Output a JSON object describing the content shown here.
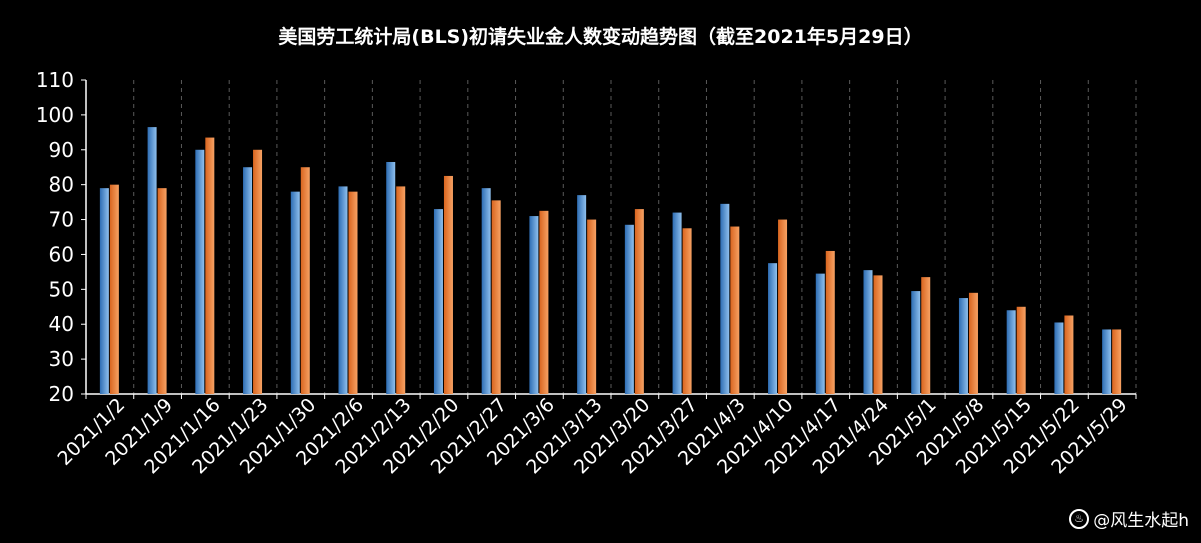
{
  "colors": {
    "background": "#000000",
    "series_blue": "#5b9bd5",
    "series_orange": "#ed7d31",
    "grid": "#5a5a5a"
  },
  "watermark": {
    "icon": "weibo-icon",
    "text": "@风生水起h"
  },
  "chart_data": {
    "type": "bar",
    "title": "美国劳工统计局(BLS)初请失业金人数变动趋势图（截至2021年5月29日）",
    "xlabel": "",
    "ylabel": "",
    "ylim": [
      20,
      110
    ],
    "yticks": [
      20,
      30,
      40,
      50,
      60,
      70,
      80,
      90,
      100,
      110
    ],
    "grid": "vertical dashed",
    "legend": "none",
    "categories": [
      "2021/1/2",
      "2021/1/9",
      "2021/1/16",
      "2021/1/23",
      "2021/1/30",
      "2021/2/6",
      "2021/2/13",
      "2021/2/20",
      "2021/2/27",
      "2021/3/6",
      "2021/3/13",
      "2021/3/20",
      "2021/3/27",
      "2021/4/3",
      "2021/4/10",
      "2021/4/17",
      "2021/4/24",
      "2021/5/1",
      "2021/5/8",
      "2021/5/15",
      "2021/5/22",
      "2021/5/29"
    ],
    "series": [
      {
        "color": "#5b9bd5",
        "values": [
          79,
          96.5,
          90,
          85,
          78,
          79.5,
          86.5,
          73,
          79,
          71,
          77,
          68.5,
          72,
          74.5,
          57.5,
          54.5,
          55.5,
          49.5,
          47.5,
          44,
          40.5,
          38.5
        ]
      },
      {
        "color": "#ed7d31",
        "values": [
          80,
          79,
          93.5,
          90,
          85,
          78,
          79.5,
          82.5,
          75.5,
          72.5,
          70,
          73,
          67.5,
          68,
          70,
          61,
          54,
          53.5,
          49,
          45,
          42.5,
          38.5
        ]
      }
    ]
  }
}
